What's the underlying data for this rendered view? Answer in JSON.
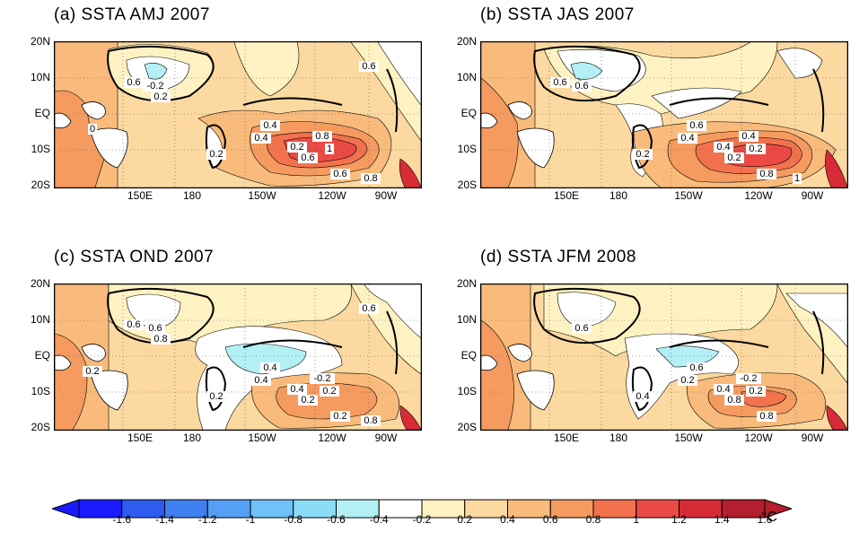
{
  "panels": [
    {
      "title": "(a) SSTA AMJ 2007",
      "labels": [
        "-0.2",
        "0.2",
        "0.4",
        "0.6",
        "0.8",
        "1",
        "0.2",
        "0.4",
        "0.6",
        "0.8",
        "0.6",
        "0.2",
        "0.6",
        "0"
      ]
    },
    {
      "title": "(b) SSTA JAS 2007",
      "labels": [
        "0.6",
        "0.2",
        "0.4",
        "0.2",
        "0.4",
        "0.2",
        "0.4",
        "0.6",
        "0.8",
        "1",
        "0.6"
      ]
    },
    {
      "title": "(c) SSTA OND 2007",
      "labels": [
        "0.6",
        "0.2",
        "0.4",
        "0.2",
        "-0.2",
        "0.2",
        "0.4",
        "0.4",
        "0.2",
        "0.8",
        "0.6",
        "0.8",
        "0.6",
        "0.2"
      ]
    },
    {
      "title": "(d) SSTA JFM 2008",
      "labels": [
        "0.6",
        "0.4",
        "0.2",
        "0.8",
        "-0.2",
        "0.2",
        "0.4",
        "0.6",
        "0.8"
      ]
    }
  ],
  "axes": {
    "lat_ticks": [
      "20N",
      "10N",
      "EQ",
      "10S",
      "20S"
    ],
    "lon_ticks": [
      "150E",
      "180",
      "150W",
      "120W",
      "90W"
    ]
  },
  "colorbar": {
    "levels": [
      "-1.6",
      "-1.4",
      "-1.2",
      "-1",
      "-0.8",
      "-0.6",
      "-0.4",
      "-0.2",
      "0.2",
      "0.4",
      "0.6",
      "0.8",
      "1",
      "1.2",
      "1.4",
      "1.6"
    ],
    "colors": [
      "#1a1aff",
      "#2e5cf0",
      "#3f7fef",
      "#55a0f4",
      "#6ec2f7",
      "#8cdcf7",
      "#b2f0f5",
      "#ffffff",
      "#fff2c2",
      "#fcd9a0",
      "#f9bb7c",
      "#f59b60",
      "#f2724e",
      "#ea4a43",
      "#d72c37",
      "#b51e2e"
    ],
    "unit": "°C"
  }
}
